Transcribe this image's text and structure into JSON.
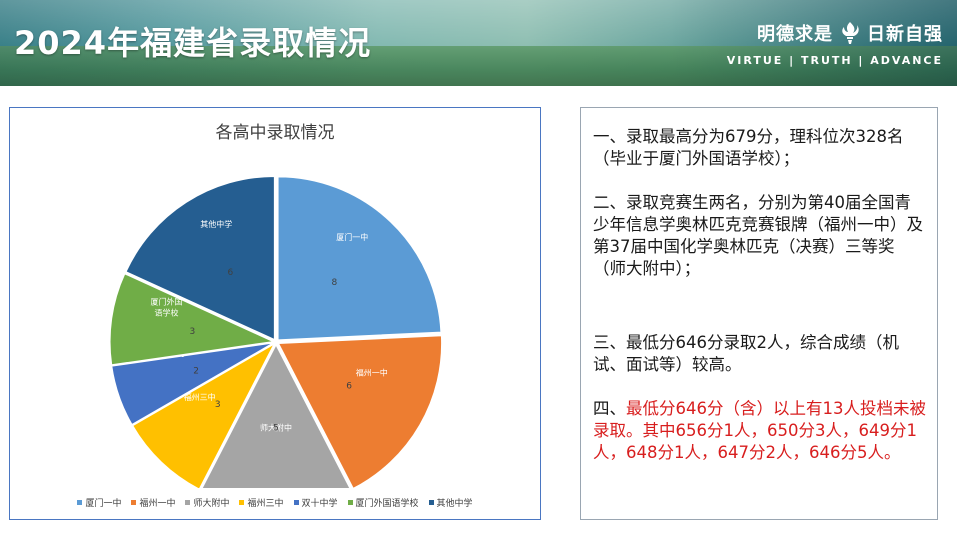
{
  "header": {
    "title": "2024年福建省录取情况",
    "motto_cn_left": "明德求是",
    "motto_cn_right": "日新自强",
    "motto_en": "VIRTUE | TRUTH | ADVANCE"
  },
  "chart_data": {
    "type": "pie",
    "title": "各高中录取情况",
    "categories": [
      "厦门一中",
      "福州一中",
      "师大附中",
      "福州三中",
      "双十中学",
      "厦门外国语学校",
      "其他中学"
    ],
    "slice_labels": [
      "厦门一中",
      "福州一中",
      "师大附中",
      "福州三中",
      "双十中学",
      "厦门外国\n语学校",
      "其他中学"
    ],
    "values": [
      8,
      6,
      5,
      3,
      2,
      3,
      6
    ],
    "colors": [
      "#5b9bd5",
      "#ed7d31",
      "#a5a5a5",
      "#ffc000",
      "#4472c4",
      "#70ad47",
      "#255e91"
    ],
    "legend_position": "bottom"
  },
  "info": {
    "p1": "一、录取最高分为679分，理科位次328名（毕业于厦门外国语学校）；",
    "p2": "二、录取竞赛生两名，分别为第40届全国青少年信息学奥林匹克竞赛银牌（福州一中）及第37届中国化学奥林匹克（决赛）三等奖（师大附中）；",
    "p3": "三、最低分646分录取2人，综合成绩（机试、面试等）较高。",
    "p4_prefix": "四、",
    "p4_red": "最低分646分（含）以上有13人投档未被录取。其中656分1人，650分3人，649分1人，648分1人，647分2人，646分5人。"
  }
}
